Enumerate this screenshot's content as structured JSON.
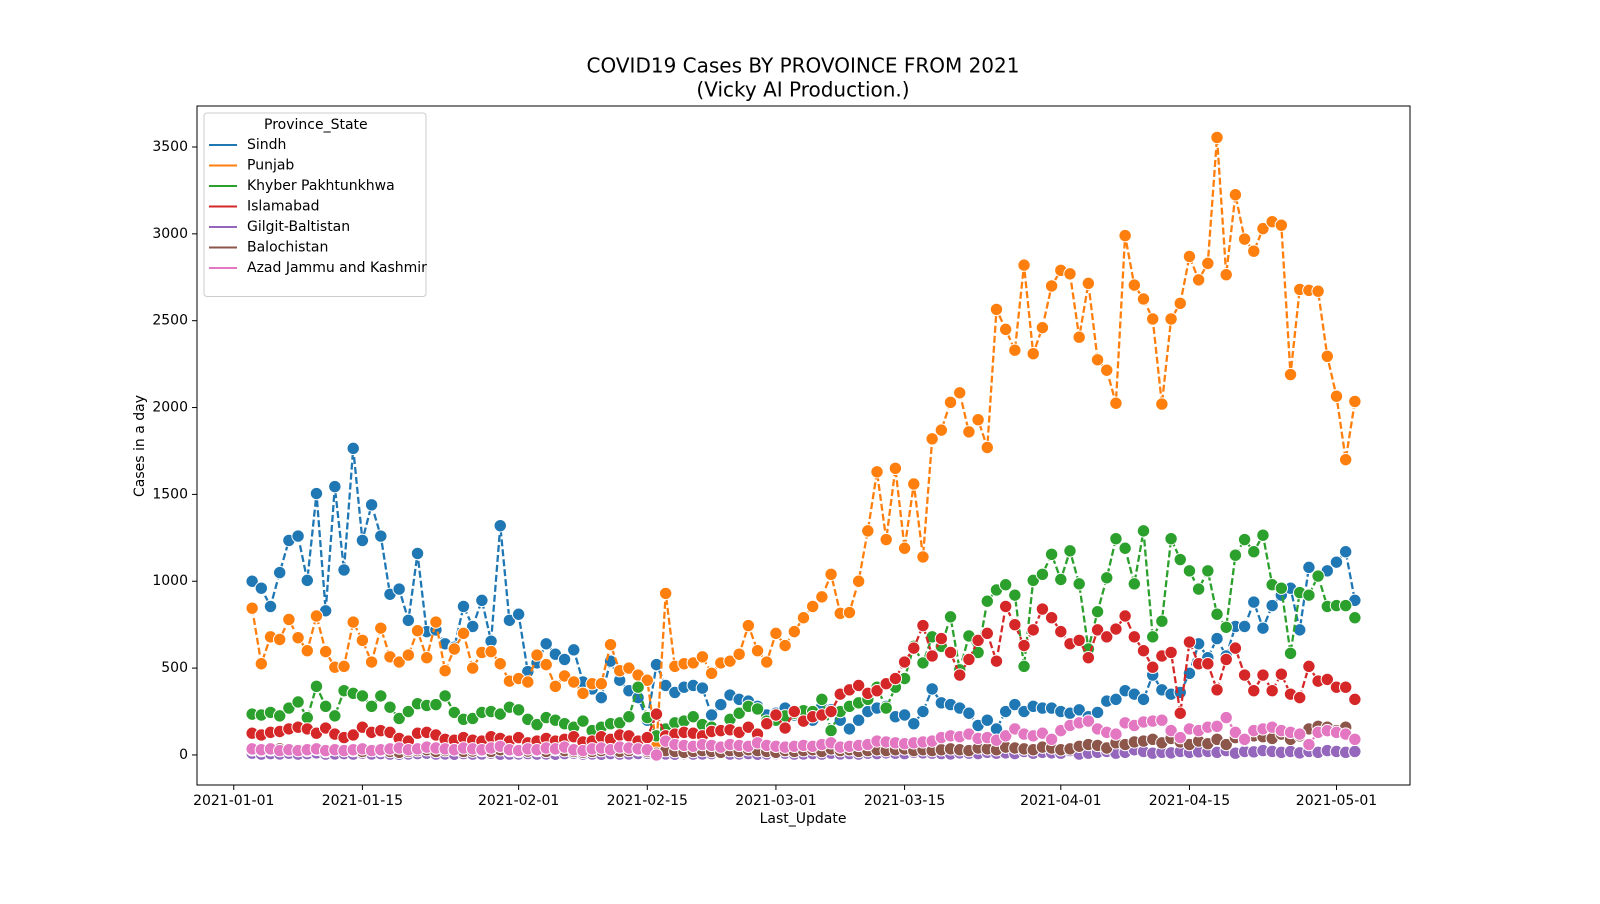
{
  "chart_data": {
    "type": "line",
    "title": "COVID19 Cases BY PROVOINCE FROM 2021",
    "subtitle": "(Vicky AI Production.)",
    "x_label": "Last_Update",
    "y_label": "Cases in a day",
    "legend_title": "Province_State",
    "legend": "upper left",
    "line_style": "dashed",
    "markers": true,
    "x": [
      "2021-01-03",
      "2021-01-04",
      "2021-01-05",
      "2021-01-06",
      "2021-01-07",
      "2021-01-08",
      "2021-01-09",
      "2021-01-10",
      "2021-01-11",
      "2021-01-12",
      "2021-01-13",
      "2021-01-14",
      "2021-01-15",
      "2021-01-16",
      "2021-01-17",
      "2021-01-18",
      "2021-01-19",
      "2021-01-20",
      "2021-01-21",
      "2021-01-22",
      "2021-01-23",
      "2021-01-24",
      "2021-01-25",
      "2021-01-26",
      "2021-01-27",
      "2021-01-28",
      "2021-01-29",
      "2021-01-30",
      "2021-01-31",
      "2021-02-01",
      "2021-02-02",
      "2021-02-03",
      "2021-02-04",
      "2021-02-05",
      "2021-02-06",
      "2021-02-07",
      "2021-02-08",
      "2021-02-09",
      "2021-02-10",
      "2021-02-11",
      "2021-02-12",
      "2021-02-13",
      "2021-02-14",
      "2021-02-15",
      "2021-02-16",
      "2021-02-17",
      "2021-02-18",
      "2021-02-19",
      "2021-02-20",
      "2021-02-21",
      "2021-02-22",
      "2021-02-23",
      "2021-02-24",
      "2021-02-25",
      "2021-02-26",
      "2021-02-27",
      "2021-02-28",
      "2021-03-01",
      "2021-03-02",
      "2021-03-03",
      "2021-03-04",
      "2021-03-05",
      "2021-03-06",
      "2021-03-07",
      "2021-03-08",
      "2021-03-09",
      "2021-03-10",
      "2021-03-11",
      "2021-03-12",
      "2021-03-13",
      "2021-03-14",
      "2021-03-15",
      "2021-03-16",
      "2021-03-17",
      "2021-03-18",
      "2021-03-19",
      "2021-03-20",
      "2021-03-21",
      "2021-03-22",
      "2021-03-23",
      "2021-03-24",
      "2021-03-25",
      "2021-03-26",
      "2021-03-27",
      "2021-03-28",
      "2021-03-29",
      "2021-03-30",
      "2021-03-31",
      "2021-04-01",
      "2021-04-02",
      "2021-04-03",
      "2021-04-04",
      "2021-04-05",
      "2021-04-06",
      "2021-04-07",
      "2021-04-08",
      "2021-04-09",
      "2021-04-10",
      "2021-04-11",
      "2021-04-12",
      "2021-04-13",
      "2021-04-14",
      "2021-04-15",
      "2021-04-16",
      "2021-04-17",
      "2021-04-18",
      "2021-04-19",
      "2021-04-20",
      "2021-04-21",
      "2021-04-22",
      "2021-04-23",
      "2021-04-24",
      "2021-04-25",
      "2021-04-26",
      "2021-04-27",
      "2021-04-28",
      "2021-04-29",
      "2021-04-30",
      "2021-05-01",
      "2021-05-02",
      "2021-05-03"
    ],
    "series": [
      {
        "name": "Sindh",
        "color": "#1f77b4",
        "values": [
          1000,
          960,
          855,
          1050,
          1235,
          1260,
          1005,
          1505,
          830,
          1545,
          1065,
          1765,
          1235,
          1440,
          1260,
          925,
          955,
          775,
          1160,
          710,
          720,
          640,
          620,
          855,
          740,
          890,
          655,
          1320,
          775,
          810,
          480,
          530,
          640,
          580,
          550,
          605,
          420,
          380,
          330,
          540,
          430,
          370,
          330,
          200,
          520,
          400,
          360,
          390,
          400,
          385,
          230,
          290,
          345,
          320,
          310,
          280,
          230,
          240,
          270,
          230,
          250,
          200,
          280,
          260,
          200,
          150,
          200,
          250,
          270,
          280,
          220,
          230,
          180,
          250,
          380,
          300,
          290,
          270,
          240,
          170,
          200,
          150,
          250,
          290,
          250,
          280,
          270,
          270,
          250,
          240,
          260,
          220,
          245,
          310,
          320,
          370,
          350,
          320,
          460,
          375,
          350,
          360,
          470,
          640,
          560,
          670,
          570,
          740,
          740,
          880,
          730,
          860,
          920,
          960,
          720,
          1080,
          1030,
          1060,
          1110,
          1170,
          890
        ]
      },
      {
        "name": "Punjab",
        "color": "#ff7f0e",
        "values": [
          845,
          525,
          680,
          665,
          780,
          675,
          600,
          800,
          595,
          505,
          510,
          765,
          660,
          535,
          730,
          565,
          535,
          575,
          715,
          560,
          765,
          485,
          610,
          700,
          500,
          590,
          595,
          525,
          425,
          440,
          420,
          575,
          520,
          395,
          455,
          420,
          355,
          410,
          410,
          635,
          485,
          500,
          460,
          430,
          50,
          930,
          510,
          525,
          530,
          565,
          470,
          530,
          540,
          580,
          745,
          600,
          535,
          700,
          630,
          710,
          790,
          855,
          910,
          1040,
          815,
          820,
          1000,
          1290,
          1630,
          1240,
          1650,
          1190,
          1560,
          1140,
          1820,
          1870,
          2030,
          2085,
          1860,
          1930,
          1770,
          2565,
          2450,
          2330,
          2820,
          2310,
          2460,
          2700,
          2790,
          2770,
          2405,
          2715,
          2275,
          2215,
          2025,
          2990,
          2705,
          2625,
          2510,
          2020,
          2510,
          2600,
          2870,
          2735,
          2830,
          3555,
          2765,
          3225,
          2970,
          2900,
          3030,
          3070,
          3050,
          2190,
          2680,
          2675,
          2670,
          2295,
          2065,
          1700,
          2035
        ]
      },
      {
        "name": "Khyber Pakhtunkhwa",
        "color": "#2ca02c",
        "values": [
          235,
          230,
          245,
          225,
          270,
          305,
          215,
          395,
          280,
          225,
          370,
          355,
          340,
          280,
          340,
          275,
          210,
          250,
          295,
          285,
          290,
          340,
          245,
          205,
          210,
          245,
          250,
          235,
          275,
          260,
          205,
          175,
          215,
          200,
          180,
          160,
          195,
          140,
          160,
          180,
          185,
          220,
          390,
          215,
          110,
          150,
          185,
          195,
          220,
          175,
          160,
          145,
          205,
          240,
          280,
          265,
          195,
          200,
          225,
          240,
          255,
          250,
          320,
          140,
          250,
          280,
          300,
          320,
          390,
          270,
          390,
          440,
          625,
          530,
          680,
          625,
          795,
          490,
          685,
          590,
          885,
          950,
          980,
          920,
          510,
          1005,
          1040,
          1155,
          1010,
          1175,
          985,
          610,
          825,
          1020,
          1245,
          1190,
          985,
          1290,
          680,
          770,
          1245,
          1125,
          1060,
          955,
          1060,
          810,
          735,
          1150,
          1240,
          1170,
          1265,
          980,
          960,
          585,
          935,
          920,
          1030,
          855,
          860,
          860,
          790
        ]
      },
      {
        "name": "Islamabad",
        "color": "#d62728",
        "values": [
          125,
          115,
          130,
          135,
          150,
          160,
          150,
          125,
          155,
          120,
          100,
          115,
          160,
          130,
          140,
          130,
          95,
          80,
          125,
          130,
          115,
          90,
          85,
          100,
          85,
          80,
          105,
          95,
          80,
          100,
          70,
          80,
          95,
          80,
          90,
          105,
          75,
          80,
          105,
          90,
          115,
          110,
          80,
          100,
          235,
          110,
          120,
          130,
          125,
          110,
          135,
          140,
          145,
          130,
          160,
          120,
          180,
          230,
          155,
          250,
          195,
          220,
          230,
          250,
          350,
          375,
          400,
          355,
          370,
          410,
          440,
          535,
          615,
          745,
          570,
          670,
          590,
          460,
          550,
          660,
          700,
          540,
          855,
          750,
          630,
          720,
          840,
          790,
          710,
          640,
          660,
          560,
          720,
          680,
          725,
          800,
          680,
          600,
          505,
          570,
          590,
          240,
          650,
          525,
          525,
          375,
          550,
          615,
          460,
          370,
          460,
          370,
          465,
          350,
          330,
          510,
          425,
          435,
          390,
          390,
          320
        ]
      },
      {
        "name": "Gilgit-Baltistan",
        "color": "#9467bd",
        "values": [
          10,
          5,
          8,
          6,
          10,
          5,
          8,
          12,
          5,
          6,
          8,
          5,
          10,
          6,
          8,
          5,
          4,
          6,
          8,
          10,
          5,
          6,
          4,
          8,
          5,
          6,
          10,
          4,
          5,
          6,
          8,
          5,
          6,
          4,
          8,
          10,
          5,
          6,
          4,
          8,
          5,
          6,
          8,
          10,
          5,
          6,
          4,
          8,
          5,
          6,
          8,
          10,
          5,
          6,
          8,
          4,
          6,
          8,
          10,
          5,
          6,
          8,
          5,
          10,
          6,
          8,
          5,
          10,
          8,
          12,
          10,
          8,
          15,
          12,
          10,
          8,
          6,
          12,
          10,
          8,
          15,
          10,
          12,
          8,
          20,
          10,
          15,
          12,
          10,
          25,
          5,
          10,
          15,
          20,
          10,
          15,
          30,
          20,
          10,
          15,
          12,
          20,
          15,
          18,
          20,
          15,
          25,
          10,
          20,
          18,
          25,
          20,
          15,
          20,
          12,
          20,
          15,
          25,
          20,
          15,
          20
        ]
      },
      {
        "name": "Balochistan",
        "color": "#8c564b",
        "values": [
          30,
          25,
          30,
          35,
          28,
          30,
          25,
          32,
          20,
          30,
          28,
          25,
          20,
          30,
          25,
          20,
          15,
          20,
          25,
          30,
          20,
          25,
          30,
          20,
          22,
          25,
          20,
          30,
          25,
          20,
          22,
          25,
          20,
          30,
          25,
          20,
          15,
          20,
          25,
          30,
          20,
          25,
          30,
          20,
          10,
          25,
          20,
          15,
          20,
          25,
          20,
          15,
          25,
          20,
          30,
          25,
          20,
          15,
          25,
          20,
          25,
          30,
          20,
          35,
          25,
          30,
          20,
          25,
          30,
          25,
          30,
          35,
          25,
          30,
          25,
          30,
          35,
          30,
          25,
          40,
          35,
          30,
          45,
          40,
          35,
          30,
          45,
          40,
          30,
          35,
          50,
          60,
          55,
          40,
          70,
          60,
          75,
          80,
          90,
          70,
          95,
          75,
          60,
          80,
          65,
          90,
          60,
          100,
          85,
          110,
          105,
          95,
          120,
          90,
          110,
          150,
          165,
          160,
          140,
          160,
          90
        ]
      },
      {
        "name": "Azad Jammu and Kashmir",
        "color": "#e377c2",
        "values": [
          35,
          30,
          35,
          25,
          30,
          25,
          30,
          35,
          25,
          30,
          25,
          30,
          35,
          25,
          30,
          35,
          40,
          30,
          35,
          45,
          40,
          35,
          30,
          40,
          35,
          30,
          40,
          50,
          30,
          25,
          35,
          30,
          40,
          35,
          45,
          30,
          25,
          35,
          40,
          30,
          45,
          40,
          35,
          30,
          0,
          80,
          60,
          55,
          50,
          60,
          55,
          45,
          60,
          55,
          50,
          70,
          55,
          50,
          45,
          50,
          55,
          50,
          60,
          70,
          45,
          50,
          55,
          60,
          80,
          75,
          70,
          65,
          70,
          75,
          80,
          100,
          110,
          105,
          120,
          95,
          100,
          85,
          110,
          150,
          120,
          110,
          125,
          90,
          140,
          170,
          185,
          195,
          150,
          130,
          120,
          185,
          170,
          190,
          195,
          200,
          140,
          100,
          150,
          140,
          160,
          165,
          215,
          130,
          90,
          140,
          150,
          160,
          140,
          130,
          120,
          60,
          130,
          140,
          130,
          120,
          90
        ]
      }
    ],
    "xlim": [
      "2020-12-28",
      "2021-05-09"
    ],
    "xticks": [
      "2021-01-01",
      "2021-01-15",
      "2021-02-01",
      "2021-02-15",
      "2021-03-01",
      "2021-03-15",
      "2021-04-01",
      "2021-04-15",
      "2021-05-01"
    ],
    "ylim": [
      -173,
      3736
    ],
    "yticks": [
      0,
      500,
      1000,
      1500,
      2000,
      2500,
      3000,
      3500
    ]
  }
}
